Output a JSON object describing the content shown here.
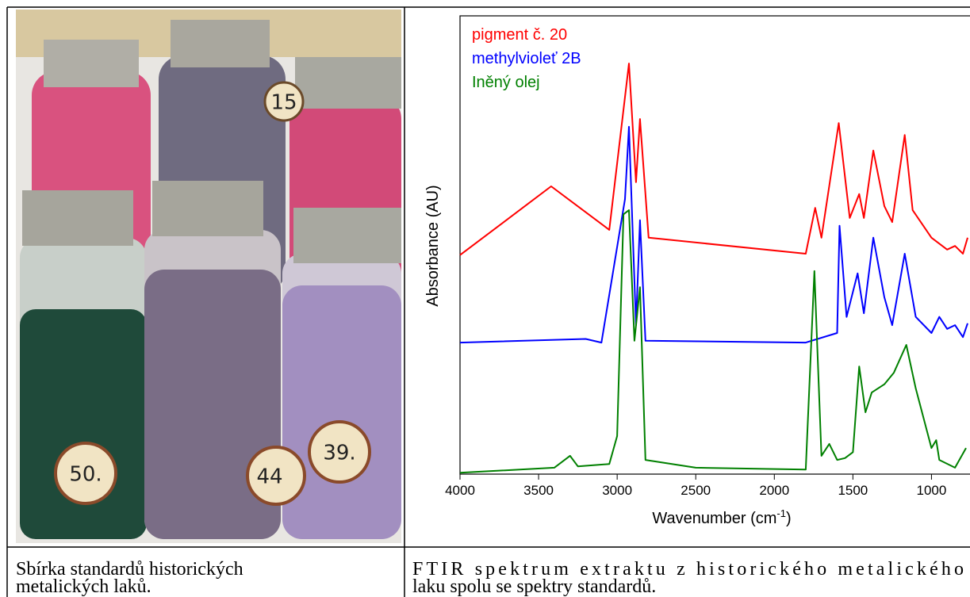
{
  "photo": {
    "labels": [
      "15",
      "50.",
      "44",
      "39."
    ]
  },
  "table": {
    "rows": [
      [
        "Sbírka standardů historických",
        "metalických laků."
      ],
      [
        "FTIR spektrum extraktu z historického metalického",
        "laku spolu se spektry standardů."
      ]
    ]
  },
  "chart_data": {
    "type": "line",
    "ylabel": "Absorbance (AU)",
    "xlabel": [
      "Wavenumber (cm",
      "-1",
      ")"
    ],
    "xlim": [
      4000,
      770
    ],
    "ylim": [
      0,
      100
    ],
    "xticks": [
      4000,
      3500,
      3000,
      2500,
      2000,
      1500,
      1000
    ],
    "series": [
      {
        "name": "pigment č. 20",
        "color": "#ff0000",
        "x": [
          4000,
          3420,
          3050,
          2925,
          2880,
          2855,
          2800,
          1800,
          1740,
          1700,
          1590,
          1520,
          1460,
          1430,
          1370,
          1300,
          1250,
          1170,
          1120,
          1000,
          900,
          850,
          800,
          770
        ],
        "values": [
          47.8,
          62.8,
          53.3,
          89.6,
          63.7,
          77.5,
          51.6,
          48.1,
          58.1,
          51.6,
          76.6,
          55.9,
          61.1,
          55.9,
          70.6,
          58.5,
          55.0,
          74.0,
          57.6,
          51.6,
          49.0,
          49.8,
          48.1,
          51.6
        ]
      },
      {
        "name": "methylvioleť 2B",
        "color": "#0000ff",
        "x": [
          4000,
          3200,
          3100,
          2950,
          2925,
          2880,
          2855,
          2820,
          1800,
          1600,
          1585,
          1540,
          1470,
          1430,
          1370,
          1300,
          1250,
          1170,
          1100,
          1000,
          950,
          900,
          850,
          800,
          770
        ],
        "values": [
          28.7,
          29.5,
          28.7,
          60.0,
          75.8,
          32.5,
          55.4,
          29.1,
          28.7,
          30.8,
          54.2,
          34.3,
          43.8,
          35.1,
          51.6,
          38.6,
          32.5,
          48.1,
          34.3,
          30.8,
          34.3,
          31.7,
          32.5,
          29.9,
          32.9
        ]
      },
      {
        "name": "Iněný olej",
        "color": "#008000",
        "x": [
          4000,
          3400,
          3300,
          3250,
          3050,
          3000,
          2960,
          2925,
          2890,
          2855,
          2820,
          2500,
          1800,
          1745,
          1700,
          1650,
          1600,
          1550,
          1500,
          1460,
          1420,
          1380,
          1300,
          1240,
          1160,
          1100,
          1000,
          970,
          950,
          850,
          780
        ],
        "values": [
          0.3,
          1.4,
          4.0,
          1.7,
          2.2,
          8.3,
          56.7,
          57.6,
          29.1,
          40.8,
          3.1,
          1.4,
          1.0,
          44.3,
          4.0,
          6.6,
          3.1,
          3.5,
          4.8,
          23.5,
          13.5,
          17.8,
          19.6,
          22.1,
          28.2,
          18.7,
          5.7,
          7.4,
          3.1,
          1.4,
          5.7
        ]
      }
    ]
  }
}
